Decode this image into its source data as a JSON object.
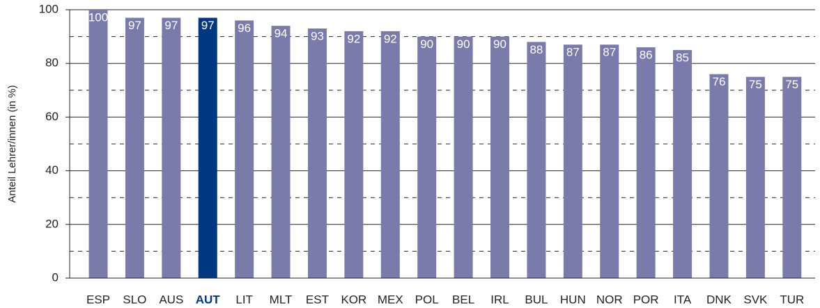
{
  "chart_data": {
    "type": "bar",
    "y_label": "Anteil Lehrer/innen (in %)",
    "categories": [
      "ESP",
      "SLO",
      "AUS",
      "AUT",
      "LIT",
      "MLT",
      "EST",
      "KOR",
      "MEX",
      "POL",
      "BEL",
      "IRL",
      "BUL",
      "HUN",
      "NOR",
      "POR",
      "ITA",
      "DNK",
      "SVK",
      "TUR"
    ],
    "values": [
      100,
      97,
      97,
      97,
      96,
      94,
      93,
      92,
      92,
      90,
      90,
      90,
      88,
      87,
      87,
      86,
      85,
      76,
      75,
      75
    ],
    "color": "#7b7bab",
    "highlight": "AUT",
    "highlight_color": "#003882",
    "ylim": [
      0,
      100
    ],
    "yticks": [
      0,
      20,
      40,
      60,
      80,
      100
    ],
    "minor_yticks": [
      10,
      30,
      50,
      70,
      90
    ],
    "grid": true
  }
}
